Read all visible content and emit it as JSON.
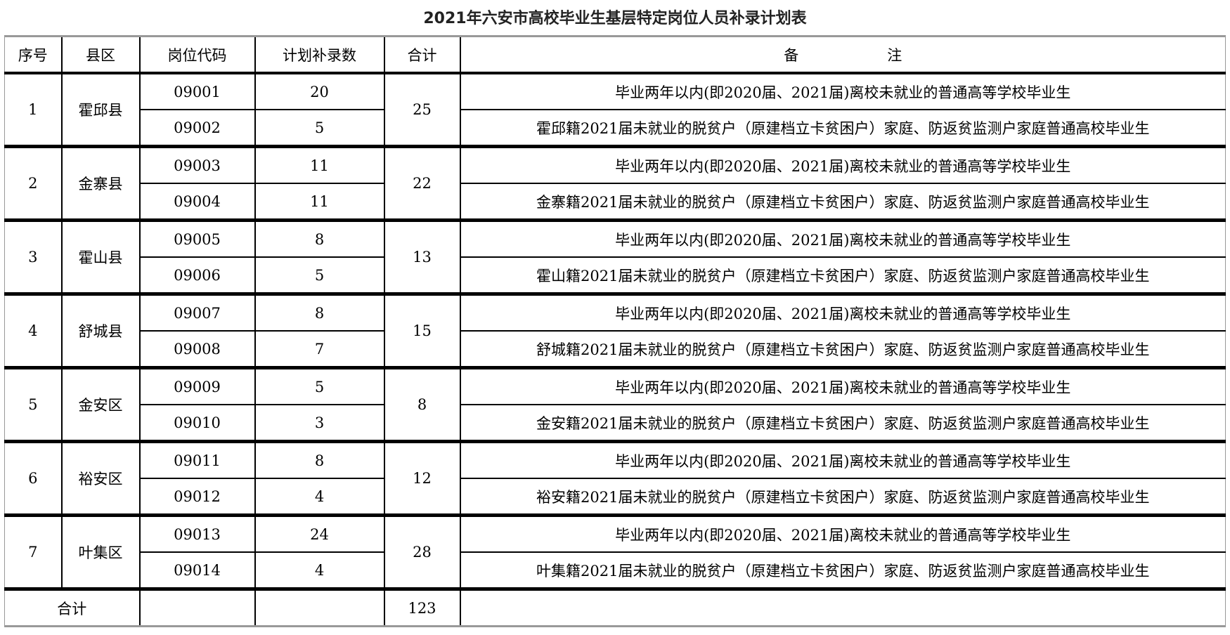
{
  "title": "2021年六安市高校毕业生基层特定岗位人员补录计划表",
  "headers": [
    "序号",
    "县区",
    "岗位代码",
    "计划补录数",
    "合计",
    "备　　　　　　注"
  ],
  "groups": [
    {
      "no": "1",
      "county": "霍邱县",
      "total": "25",
      "posts": [
        {
          "code": "09001",
          "count": "20",
          "note": "毕业两年以内(即2020届、2021届)离校未就业的普通高等学校毕业生"
        },
        {
          "code": "09002",
          "count": "5",
          "note": "霍邱籍2021届未就业的脱贫户（原建档立卡贫困户）家庭、防返贫监测户家庭普通高校毕业生"
        }
      ]
    },
    {
      "no": "2",
      "county": "金寨县",
      "total": "22",
      "posts": [
        {
          "code": "09003",
          "count": "11",
          "note": "毕业两年以内(即2020届、2021届)离校未就业的普通高等学校毕业生"
        },
        {
          "code": "09004",
          "count": "11",
          "note": "金寨籍2021届未就业的脱贫户（原建档立卡贫困户）家庭、防返贫监测户家庭普通高校毕业生"
        }
      ]
    },
    {
      "no": "3",
      "county": "霍山县",
      "total": "13",
      "posts": [
        {
          "code": "09005",
          "count": "8",
          "note": "毕业两年以内(即2020届、2021届)离校未就业的普通高等学校毕业生"
        },
        {
          "code": "09006",
          "count": "5",
          "note": "霍山籍2021届未就业的脱贫户（原建档立卡贫困户）家庭、防返贫监测户家庭普通高校毕业生"
        }
      ]
    },
    {
      "no": "4",
      "county": "舒城县",
      "total": "15",
      "posts": [
        {
          "code": "09007",
          "count": "8",
          "note": "毕业两年以内(即2020届、2021届)离校未就业的普通高等学校毕业生"
        },
        {
          "code": "09008",
          "count": "7",
          "note": "舒城籍2021届未就业的脱贫户（原建档立卡贫困户）家庭、防返贫监测户家庭普通高校毕业生"
        }
      ]
    },
    {
      "no": "5",
      "county": "金安区",
      "total": "8",
      "posts": [
        {
          "code": "09009",
          "count": "5",
          "note": "毕业两年以内(即2020届、2021届)离校未就业的普通高等学校毕业生"
        },
        {
          "code": "09010",
          "count": "3",
          "note": "金安籍2021届未就业的脱贫户（原建档立卡贫困户）家庭、防返贫监测户家庭普通高校毕业生"
        }
      ]
    },
    {
      "no": "6",
      "county": "裕安区",
      "total": "12",
      "posts": [
        {
          "code": "09011",
          "count": "8",
          "note": "毕业两年以内(即2020届、2021届)离校未就业的普通高等学校毕业生"
        },
        {
          "code": "09012",
          "count": "4",
          "note": "裕安籍2021届未就业的脱贫户（原建档立卡贫困户）家庭、防返贫监测户家庭普通高校毕业生"
        }
      ]
    },
    {
      "no": "7",
      "county": "叶集区",
      "total": "28",
      "posts": [
        {
          "code": "09013",
          "count": "24",
          "note": "毕业两年以内(即2020届、2021届)离校未就业的普通高等学校毕业生"
        },
        {
          "code": "09014",
          "count": "4",
          "note": "叶集籍2021届未就业的脱贫户（原建档立卡贫困户）家庭、防返贫监测户家庭普通高校毕业生"
        }
      ]
    }
  ],
  "footer": {
    "label": "合计",
    "total": "123"
  }
}
